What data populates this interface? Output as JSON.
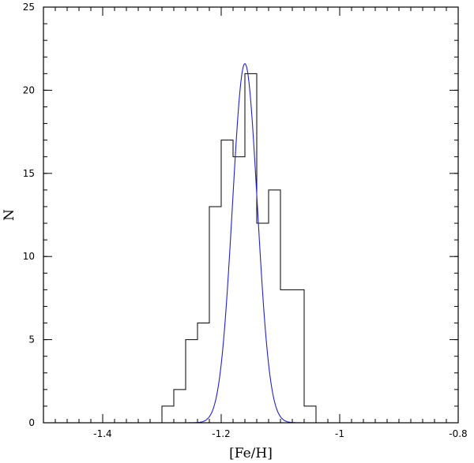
{
  "chart_data": {
    "type": "histogram",
    "xlabel": "[Fe/H]",
    "ylabel": "N",
    "xlim": [
      -1.5,
      -0.8
    ],
    "ylim": [
      0,
      25
    ],
    "x_major_ticks": [
      -1.4,
      -1.2,
      -1.0,
      -0.8
    ],
    "x_tick_labels": [
      "-1.4",
      "-1.2",
      "-1",
      "-0.8"
    ],
    "x_minor_step": 0.02,
    "y_major_ticks": [
      0,
      5,
      10,
      15,
      20,
      25
    ],
    "y_tick_labels": [
      "0",
      "5",
      "10",
      "15",
      "20",
      "25"
    ],
    "y_minor_step": 1,
    "grid": false,
    "series": [
      {
        "kind": "step-histogram",
        "color": "#000000",
        "bin_edges": [
          -1.3,
          -1.29,
          -1.28,
          -1.27,
          -1.26,
          -1.25,
          -1.24,
          -1.23,
          -1.22,
          -1.21,
          -1.2,
          -1.19,
          -1.18,
          -1.17,
          -1.16,
          -1.15,
          -1.14,
          -1.13,
          -1.12,
          -1.11,
          -1.1,
          -1.09,
          -1.08,
          -1.07,
          -1.06,
          -1.05,
          -1.04
        ],
        "counts": [
          1,
          1,
          2,
          2,
          5,
          5,
          6,
          6,
          13,
          13,
          17,
          17,
          16,
          16,
          21,
          21,
          12,
          12,
          14,
          14,
          8,
          8,
          8,
          8,
          1,
          1
        ]
      },
      {
        "kind": "gaussian",
        "color": "#2222cc",
        "mean": -1.16,
        "sigma": 0.021,
        "amplitude": 21.6,
        "x_range": [
          -1.26,
          -1.06
        ]
      }
    ]
  }
}
